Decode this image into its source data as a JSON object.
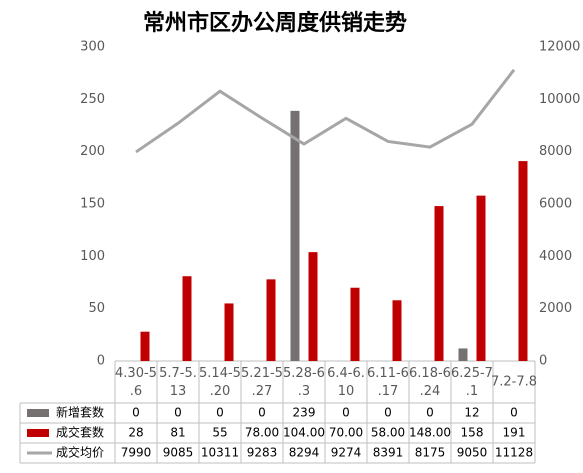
{
  "chart_data": {
    "type": "bar-line",
    "title": "常州市区办公周度供销走势",
    "categories": [
      "4.30-5.6",
      "5.7-5.13",
      "5.14-5.20",
      "5.21-5.27",
      "5.28-6.3",
      "6.4-6.10",
      "6.11-6.17",
      "6.18-6.24",
      "6.25-7.1",
      "7.2-7.8"
    ],
    "series": [
      {
        "name": "新增套数",
        "type": "bar",
        "color": "#767171",
        "values": [
          0,
          0,
          0,
          0,
          239,
          0,
          0,
          0,
          12,
          0
        ]
      },
      {
        "name": "成交套数",
        "type": "bar",
        "color": "#c00000",
        "values": [
          28,
          81,
          55,
          78,
          104,
          70,
          58,
          148,
          158,
          191
        ],
        "value_labels": [
          "28",
          "81",
          "55",
          "78.00",
          "104.00",
          "70.00",
          "58.00",
          "148.00",
          "158",
          "191"
        ]
      },
      {
        "name": "成交均价",
        "type": "line",
        "axis": "y2",
        "color": "#a6a6a6",
        "values": [
          7990,
          9085,
          10311,
          9283,
          8294,
          9274,
          8391,
          8175,
          9050,
          11128
        ]
      }
    ],
    "ylim": [
      0,
      300
    ],
    "yticks": [
      0,
      50,
      100,
      150,
      200,
      250,
      300
    ],
    "y2lim": [
      0,
      12000
    ],
    "y2ticks": [
      0,
      2000,
      4000,
      6000,
      8000,
      10000,
      12000
    ]
  }
}
